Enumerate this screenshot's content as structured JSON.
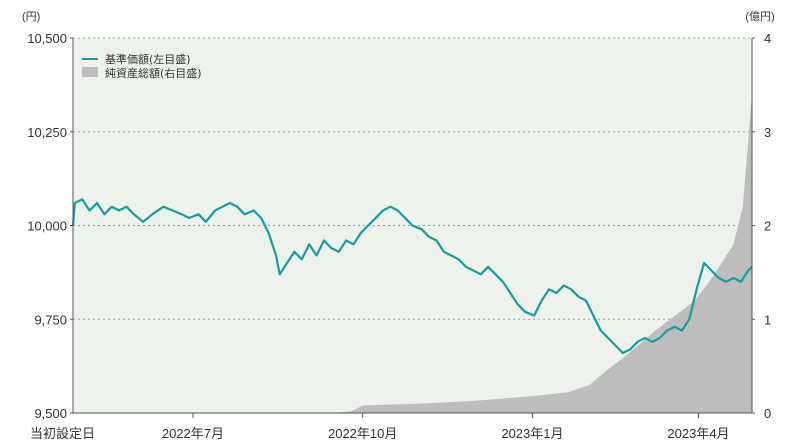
{
  "chart_data": {
    "type": "line",
    "left_unit": "(円)",
    "right_unit": "(億円)",
    "colors": {
      "nav_line": "#1a9a9a",
      "area_fill": "#bdbdbd",
      "plot_bg": "#eef2ec",
      "grid": "#a0a0a0"
    },
    "ylim_left": [
      9500,
      10500
    ],
    "ylim_right": [
      0,
      4
    ],
    "left_ticks": [
      "10,500",
      "10,250",
      "10,000",
      "9,750",
      "9,500"
    ],
    "right_ticks": [
      "4",
      "3",
      "2",
      "1",
      "0"
    ],
    "x_categories": [
      "当初設定日",
      "2022年7月",
      "2022年10月",
      "2023年1月",
      "2023年4月"
    ],
    "x_range": [
      "2022-04-27",
      "2023-04-30"
    ],
    "grid": "horizontal dotted",
    "legend_position": "top-left",
    "series": [
      {
        "name": "基準価額(左目盛)",
        "axis": "left",
        "kind": "line",
        "points": [
          [
            "2022-04-27",
            10000
          ],
          [
            "2022-04-28",
            10060
          ],
          [
            "2022-05-02",
            10070
          ],
          [
            "2022-05-06",
            10040
          ],
          [
            "2022-05-10",
            10060
          ],
          [
            "2022-05-14",
            10030
          ],
          [
            "2022-05-18",
            10050
          ],
          [
            "2022-05-22",
            10040
          ],
          [
            "2022-05-26",
            10050
          ],
          [
            "2022-05-30",
            10030
          ],
          [
            "2022-06-04",
            10010
          ],
          [
            "2022-06-09",
            10030
          ],
          [
            "2022-06-15",
            10050
          ],
          [
            "2022-06-20",
            10040
          ],
          [
            "2022-06-25",
            10030
          ],
          [
            "2022-06-29",
            10020
          ],
          [
            "2022-07-04",
            10030
          ],
          [
            "2022-07-08",
            10010
          ],
          [
            "2022-07-13",
            10040
          ],
          [
            "2022-07-17",
            10050
          ],
          [
            "2022-07-21",
            10060
          ],
          [
            "2022-07-25",
            10050
          ],
          [
            "2022-07-29",
            10030
          ],
          [
            "2022-08-03",
            10040
          ],
          [
            "2022-08-07",
            10020
          ],
          [
            "2022-08-11",
            9980
          ],
          [
            "2022-08-15",
            9920
          ],
          [
            "2022-08-17",
            9870
          ],
          [
            "2022-08-21",
            9900
          ],
          [
            "2022-08-25",
            9930
          ],
          [
            "2022-08-29",
            9910
          ],
          [
            "2022-09-02",
            9950
          ],
          [
            "2022-09-06",
            9920
          ],
          [
            "2022-09-10",
            9960
          ],
          [
            "2022-09-14",
            9940
          ],
          [
            "2022-09-18",
            9930
          ],
          [
            "2022-09-22",
            9960
          ],
          [
            "2022-09-26",
            9950
          ],
          [
            "2022-09-30",
            9980
          ],
          [
            "2022-10-04",
            10000
          ],
          [
            "2022-10-08",
            10020
          ],
          [
            "2022-10-12",
            10040
          ],
          [
            "2022-10-16",
            10050
          ],
          [
            "2022-10-20",
            10040
          ],
          [
            "2022-10-24",
            10020
          ],
          [
            "2022-10-28",
            10000
          ],
          [
            "2022-11-02",
            9990
          ],
          [
            "2022-11-06",
            9970
          ],
          [
            "2022-11-10",
            9960
          ],
          [
            "2022-11-14",
            9930
          ],
          [
            "2022-11-18",
            9920
          ],
          [
            "2022-11-22",
            9910
          ],
          [
            "2022-11-26",
            9890
          ],
          [
            "2022-11-30",
            9880
          ],
          [
            "2022-12-04",
            9870
          ],
          [
            "2022-12-08",
            9890
          ],
          [
            "2022-12-12",
            9870
          ],
          [
            "2022-12-16",
            9850
          ],
          [
            "2022-12-20",
            9820
          ],
          [
            "2022-12-24",
            9790
          ],
          [
            "2022-12-28",
            9770
          ],
          [
            "2023-01-02",
            9760
          ],
          [
            "2023-01-06",
            9800
          ],
          [
            "2023-01-10",
            9830
          ],
          [
            "2023-01-14",
            9820
          ],
          [
            "2023-01-18",
            9840
          ],
          [
            "2023-01-22",
            9830
          ],
          [
            "2023-01-26",
            9810
          ],
          [
            "2023-01-30",
            9800
          ],
          [
            "2023-02-03",
            9760
          ],
          [
            "2023-02-07",
            9720
          ],
          [
            "2023-02-11",
            9700
          ],
          [
            "2023-02-15",
            9680
          ],
          [
            "2023-02-19",
            9660
          ],
          [
            "2023-02-23",
            9670
          ],
          [
            "2023-02-27",
            9690
          ],
          [
            "2023-03-03",
            9700
          ],
          [
            "2023-03-07",
            9690
          ],
          [
            "2023-03-11",
            9700
          ],
          [
            "2023-03-15",
            9720
          ],
          [
            "2023-03-19",
            9730
          ],
          [
            "2023-03-23",
            9720
          ],
          [
            "2023-03-27",
            9750
          ],
          [
            "2023-03-31",
            9830
          ],
          [
            "2023-04-04",
            9900
          ],
          [
            "2023-04-08",
            9880
          ],
          [
            "2023-04-12",
            9860
          ],
          [
            "2023-04-16",
            9850
          ],
          [
            "2023-04-20",
            9860
          ],
          [
            "2023-04-24",
            9850
          ],
          [
            "2023-04-28",
            9880
          ],
          [
            "2023-04-30",
            9890
          ]
        ]
      },
      {
        "name": "純資産総額(右目盛)",
        "axis": "right",
        "kind": "area",
        "points": [
          [
            "2022-04-27",
            0
          ],
          [
            "2022-09-15",
            0
          ],
          [
            "2022-09-25",
            0.02
          ],
          [
            "2022-10-01",
            0.08
          ],
          [
            "2022-11-01",
            0.1
          ],
          [
            "2022-12-01",
            0.13
          ],
          [
            "2023-01-01",
            0.18
          ],
          [
            "2023-01-20",
            0.22
          ],
          [
            "2023-02-01",
            0.3
          ],
          [
            "2023-02-10",
            0.45
          ],
          [
            "2023-02-20",
            0.6
          ],
          [
            "2023-03-01",
            0.75
          ],
          [
            "2023-03-10",
            0.9
          ],
          [
            "2023-03-20",
            1.05
          ],
          [
            "2023-03-30",
            1.2
          ],
          [
            "2023-04-05",
            1.35
          ],
          [
            "2023-04-12",
            1.55
          ],
          [
            "2023-04-20",
            1.8
          ],
          [
            "2023-04-25",
            2.2
          ],
          [
            "2023-04-30",
            3.4
          ]
        ]
      }
    ]
  }
}
